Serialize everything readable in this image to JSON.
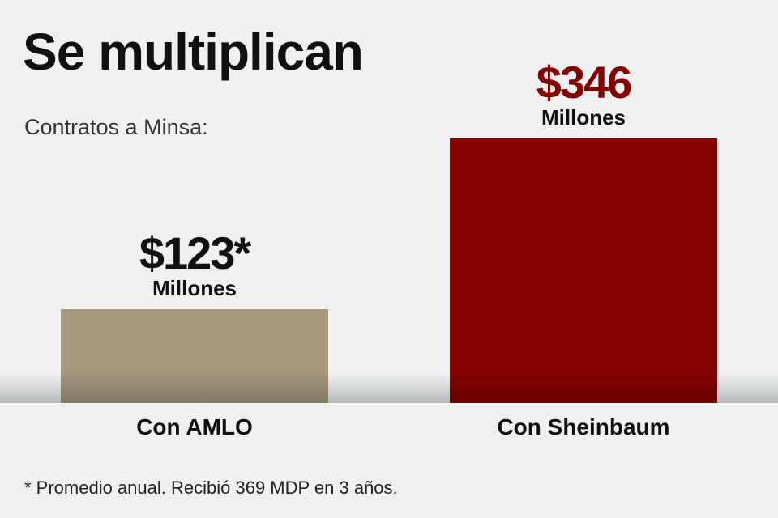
{
  "chart_data": {
    "type": "bar",
    "title": "Se multiplican",
    "subtitle": "Contratos a Minsa:",
    "categories": [
      "Con AMLO",
      "Con Sheinbaum"
    ],
    "values": [
      123,
      346
    ],
    "value_labels": [
      "$123*",
      "$346"
    ],
    "unit_label": "Millones",
    "colors": [
      "#a59a80",
      "#850000"
    ],
    "label_colors": [
      "#111111",
      "#850000"
    ],
    "ylim": [
      0,
      346
    ],
    "xlabel": "",
    "ylabel": "",
    "grid": false,
    "footnote": "* Promedio anual.  Recibió 369 MDP en 3 años."
  }
}
